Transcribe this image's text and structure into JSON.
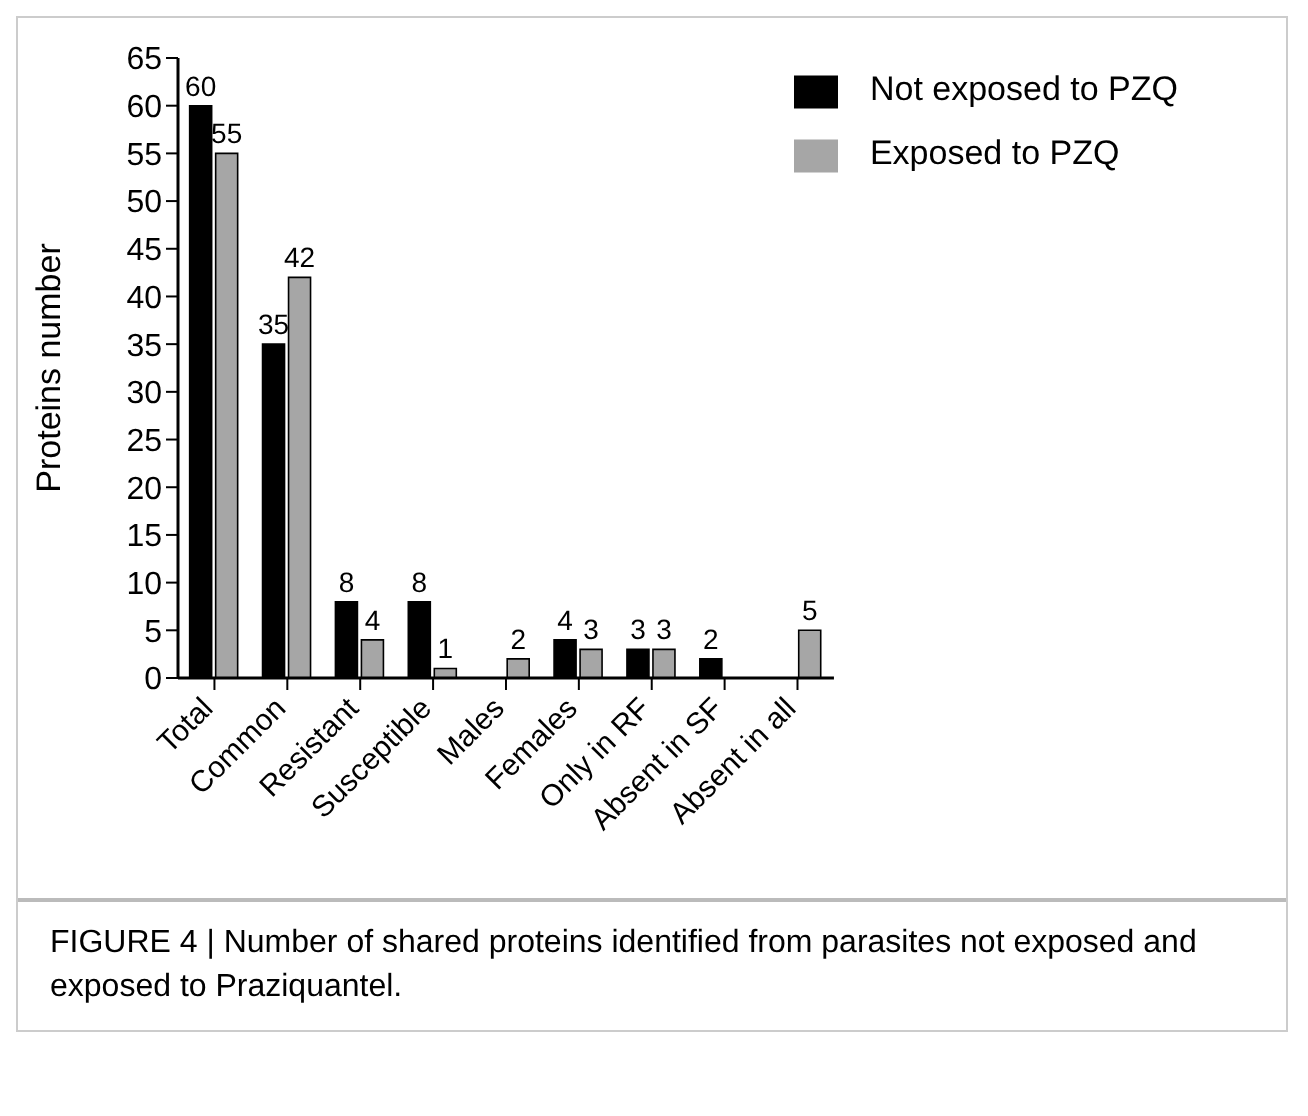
{
  "chart_data": {
    "type": "bar",
    "ylabel": "Proteins number",
    "categories": [
      "Total",
      "Common",
      "Resistant",
      "Susceptible",
      "Males",
      "Females",
      "Only in RF",
      "Absent in SF",
      "Absent in all"
    ],
    "series": [
      {
        "name": "Not exposed to PZQ",
        "color": "#000000",
        "values": [
          60,
          35,
          8,
          8,
          null,
          4,
          3,
          2,
          null
        ]
      },
      {
        "name": "Exposed to PZQ",
        "color": "#a6a6a6",
        "values": [
          55,
          42,
          4,
          1,
          2,
          3,
          3,
          null,
          5
        ]
      }
    ],
    "ylim": [
      0,
      65
    ],
    "yticks": [
      0,
      5,
      10,
      15,
      20,
      25,
      30,
      35,
      40,
      45,
      50,
      55,
      60,
      65
    ],
    "data_labels": true,
    "legend": "top right",
    "annotations": [
      "FIGURE 4 | Number of shared proteins identified from parasites not exposed and exposed to Praziquantel."
    ]
  }
}
